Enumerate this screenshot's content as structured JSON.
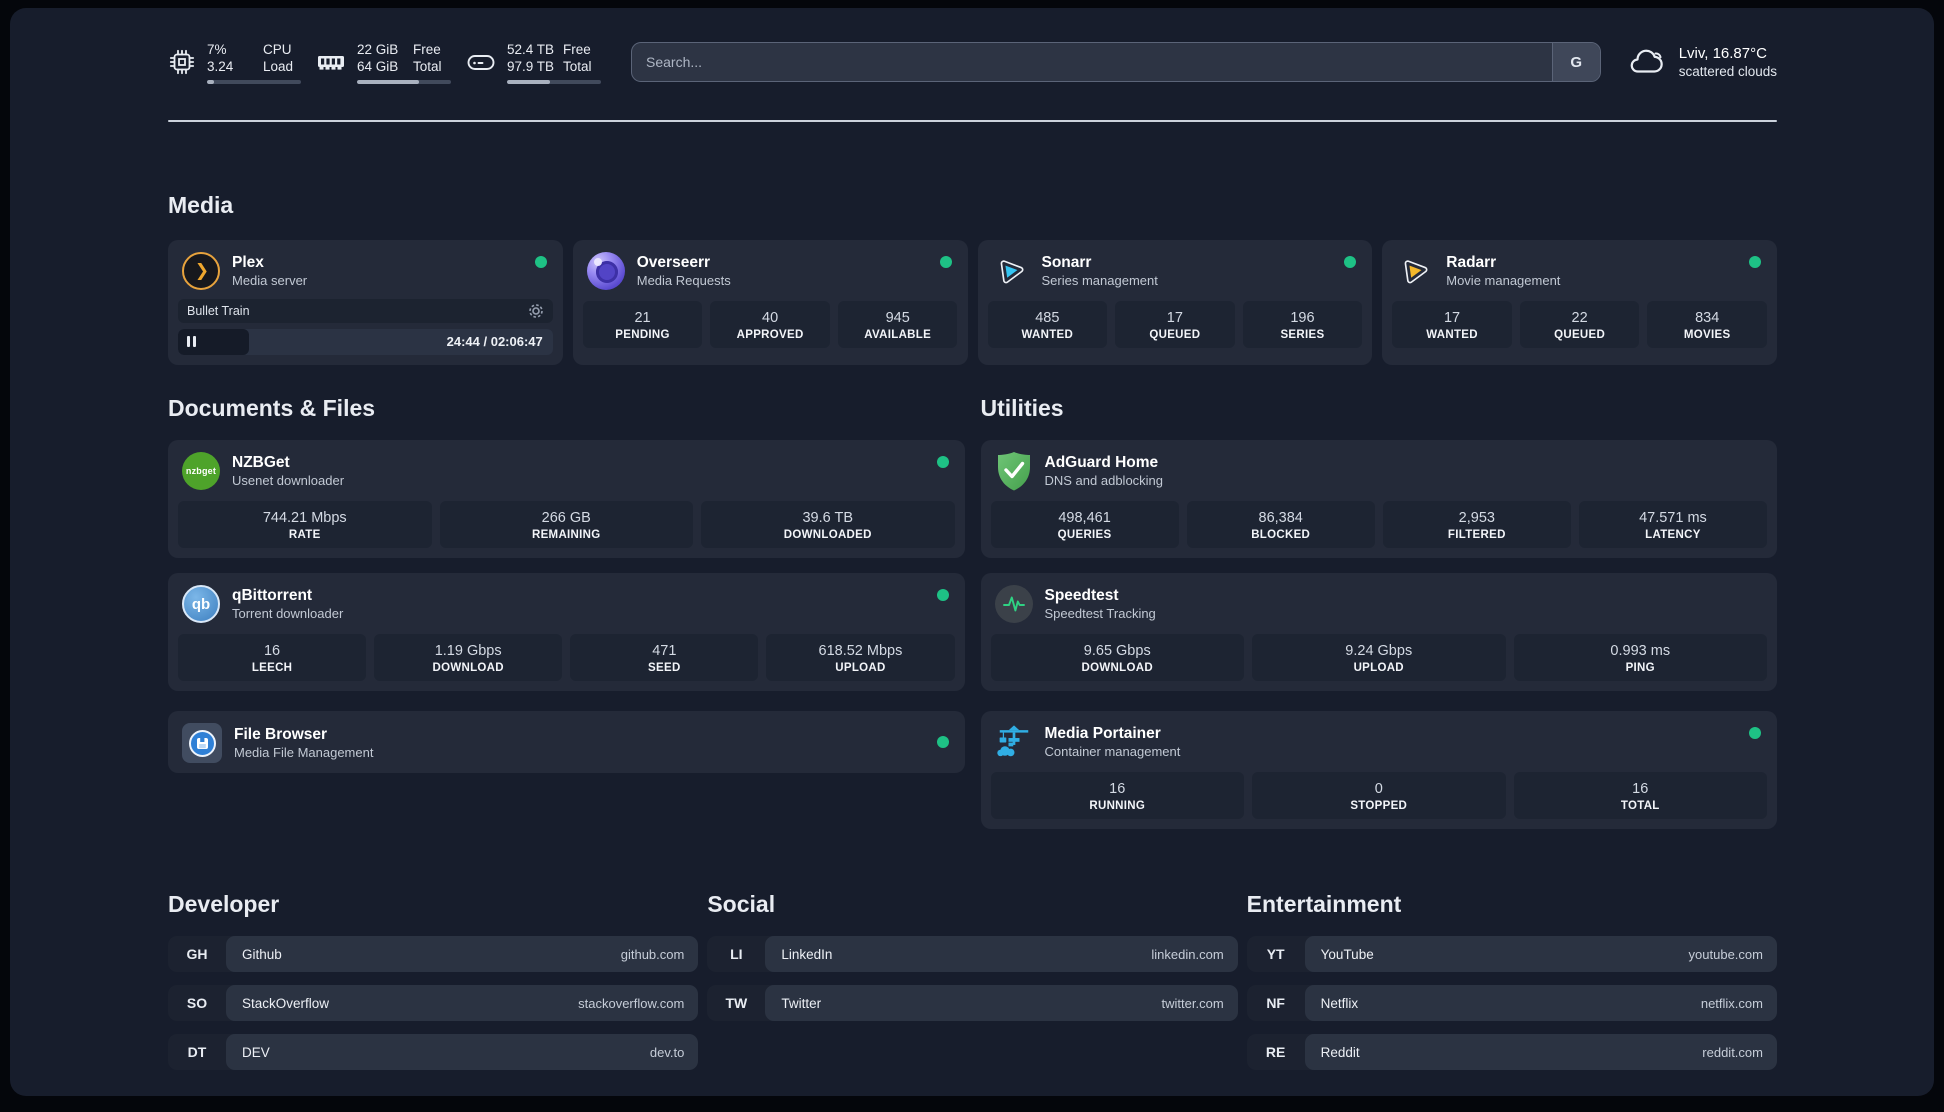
{
  "system_stats": [
    {
      "icon": "cpu-icon",
      "value1": "7%",
      "value2": "3.24",
      "label1": "CPU",
      "label2": "Load",
      "progress_pct": 7
    },
    {
      "icon": "memory-icon",
      "value1": "22 GiB",
      "value2": "64 GiB",
      "label1": "Free",
      "label2": "Total",
      "progress_pct": 66
    },
    {
      "icon": "disk-icon",
      "value1": "52.4 TB",
      "value2": "97.9 TB",
      "label1": "Free",
      "label2": "Total",
      "progress_pct": 46
    }
  ],
  "search": {
    "placeholder": "Search...",
    "engine_button": "G"
  },
  "weather": {
    "icon": "cloud-icon",
    "location_temp": "Lviv, 16.87°C",
    "condition": "scattered clouds"
  },
  "sections": {
    "media": {
      "title": "Media",
      "cards": [
        {
          "icon": "plex-icon",
          "name": "Plex",
          "subtitle": "Media server",
          "online": true,
          "player": {
            "track": "Bullet Train",
            "time_display": "24:44 / 02:06:47",
            "progress_pct": 19
          }
        },
        {
          "icon": "overseerr-icon",
          "name": "Overseerr",
          "subtitle": "Media Requests",
          "online": true,
          "stats": [
            {
              "value": "21",
              "label": "PENDING"
            },
            {
              "value": "40",
              "label": "APPROVED"
            },
            {
              "value": "945",
              "label": "AVAILABLE"
            }
          ]
        },
        {
          "icon": "sonarr-icon",
          "name": "Sonarr",
          "subtitle": "Series management",
          "online": true,
          "stats": [
            {
              "value": "485",
              "label": "WANTED"
            },
            {
              "value": "17",
              "label": "QUEUED"
            },
            {
              "value": "196",
              "label": "SERIES"
            }
          ]
        },
        {
          "icon": "radarr-icon",
          "name": "Radarr",
          "subtitle": "Movie management",
          "online": true,
          "stats": [
            {
              "value": "17",
              "label": "WANTED"
            },
            {
              "value": "22",
              "label": "QUEUED"
            },
            {
              "value": "834",
              "label": "MOVIES"
            }
          ]
        }
      ]
    },
    "documents": {
      "title": "Documents & Files",
      "cards": [
        {
          "icon": "nzbget-icon",
          "icon_text": "nzbget",
          "name": "NZBGet",
          "subtitle": "Usenet downloader",
          "online": true,
          "stats": [
            {
              "value": "744.21 Mbps",
              "label": "RATE"
            },
            {
              "value": "266 GB",
              "label": "REMAINING"
            },
            {
              "value": "39.6 TB",
              "label": "DOWNLOADED"
            }
          ]
        },
        {
          "icon": "qbittorrent-icon",
          "icon_text": "qb",
          "name": "qBittorrent",
          "subtitle": "Torrent downloader",
          "online": true,
          "stats": [
            {
              "value": "16",
              "label": "LEECH"
            },
            {
              "value": "1.19 Gbps",
              "label": "DOWNLOAD"
            },
            {
              "value": "471",
              "label": "SEED"
            },
            {
              "value": "618.52 Mbps",
              "label": "UPLOAD"
            }
          ]
        },
        {
          "icon": "filebrowser-icon",
          "name": "File Browser",
          "subtitle": "Media File Management",
          "online": true
        }
      ]
    },
    "utilities": {
      "title": "Utilities",
      "cards": [
        {
          "icon": "adguard-icon",
          "name": "AdGuard Home",
          "subtitle": "DNS and adblocking",
          "stats": [
            {
              "value": "498,461",
              "label": "QUERIES"
            },
            {
              "value": "86,384",
              "label": "BLOCKED"
            },
            {
              "value": "2,953",
              "label": "FILTERED"
            },
            {
              "value": "47.571 ms",
              "label": "LATENCY"
            }
          ]
        },
        {
          "icon": "speedtest-icon",
          "name": "Speedtest",
          "subtitle": "Speedtest Tracking",
          "stats": [
            {
              "value": "9.65 Gbps",
              "label": "DOWNLOAD"
            },
            {
              "value": "9.24 Gbps",
              "label": "UPLOAD"
            },
            {
              "value": "0.993 ms",
              "label": "PING"
            }
          ]
        },
        {
          "icon": "portainer-icon",
          "name": "Media Portainer",
          "subtitle": "Container management",
          "online": true,
          "stats": [
            {
              "value": "16",
              "label": "RUNNING"
            },
            {
              "value": "0",
              "label": "STOPPED"
            },
            {
              "value": "16",
              "label": "TOTAL"
            }
          ]
        }
      ]
    }
  },
  "bookmarks": [
    {
      "title": "Developer",
      "links": [
        {
          "abbr": "GH",
          "name": "Github",
          "url": "github.com"
        },
        {
          "abbr": "SO",
          "name": "StackOverflow",
          "url": "stackoverflow.com"
        },
        {
          "abbr": "DT",
          "name": "DEV",
          "url": "dev.to"
        }
      ]
    },
    {
      "title": "Social",
      "links": [
        {
          "abbr": "LI",
          "name": "LinkedIn",
          "url": "linkedin.com"
        },
        {
          "abbr": "TW",
          "name": "Twitter",
          "url": "twitter.com"
        }
      ]
    },
    {
      "title": "Entertainment",
      "links": [
        {
          "abbr": "YT",
          "name": "YouTube",
          "url": "youtube.com"
        },
        {
          "abbr": "NF",
          "name": "Netflix",
          "url": "netflix.com"
        },
        {
          "abbr": "RE",
          "name": "Reddit",
          "url": "reddit.com"
        }
      ]
    }
  ],
  "colors": {
    "background": "#171d2c",
    "card": "#242a39",
    "stat_box": "#1d2432",
    "status_online": "#1ec185",
    "plex_accent": "#efa72e",
    "sonarr_accent": "#35c5f2",
    "radarr_accent": "#f3b72a",
    "nzbget_accent": "#4ea32a",
    "qbittorrent_accent": "#4788c7",
    "adguard_accent": "#5cb660",
    "speedtest_accent": "#2fd283",
    "portainer_accent": "#30aee4",
    "filebrowser_accent": "#2f80d6",
    "overseerr_accent": "#6c5ce7"
  }
}
